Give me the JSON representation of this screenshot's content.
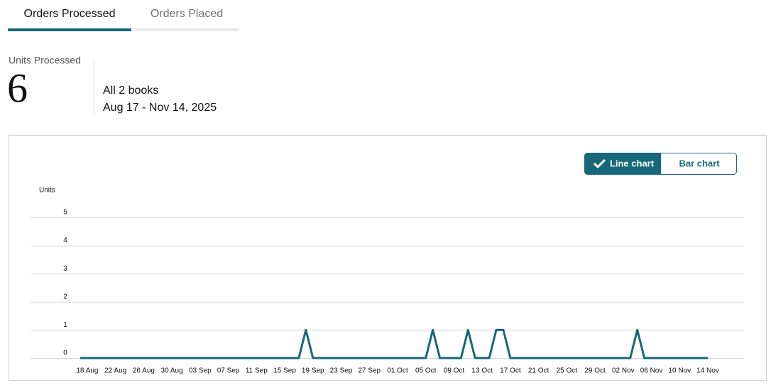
{
  "tabs": [
    "Orders Processed",
    "Orders Placed"
  ],
  "summary": {
    "label": "Units Processed",
    "value": 6,
    "scope": "All 2 books",
    "range": "Aug 17 - Nov 14, 2025"
  },
  "chart_data": {
    "type": "line",
    "y_label": "Units",
    "toggle": [
      "Line chart",
      "Bar chart"
    ],
    "color": "#17687a",
    "grid": true,
    "ylim": [
      0,
      5
    ],
    "yticks": [
      0,
      1,
      2,
      3,
      4,
      5
    ],
    "categories": [
      null,
      "18 Aug",
      null,
      null,
      null,
      "22 Aug",
      null,
      null,
      null,
      "26 Aug",
      null,
      null,
      null,
      "30 Aug",
      null,
      null,
      null,
      "03 Sep",
      null,
      null,
      null,
      "07 Sep",
      null,
      null,
      null,
      "11 Sep",
      null,
      null,
      null,
      "15 Sep",
      null,
      null,
      null,
      "19 Sep",
      null,
      null,
      null,
      "23 Sep",
      null,
      null,
      null,
      "27 Sep",
      null,
      null,
      null,
      "01 Oct",
      null,
      null,
      null,
      "05 Oct",
      null,
      null,
      null,
      "09 Oct",
      null,
      null,
      null,
      "13 Oct",
      null,
      null,
      null,
      "17 Oct",
      null,
      null,
      null,
      "21 Oct",
      null,
      null,
      null,
      "25 Oct",
      null,
      null,
      null,
      "29 Oct",
      null,
      null,
      null,
      "02 Nov",
      null,
      null,
      null,
      "06 Nov",
      null,
      null,
      null,
      "10 Nov",
      null,
      null,
      null,
      "14 Nov"
    ],
    "values": [
      0,
      0,
      0,
      0,
      0,
      0,
      0,
      0,
      0,
      0,
      0,
      0,
      0,
      0,
      0,
      0,
      0,
      0,
      0,
      0,
      0,
      0,
      0,
      0,
      0,
      0,
      0,
      0,
      0,
      0,
      0,
      0,
      1,
      0,
      0,
      0,
      0,
      0,
      0,
      0,
      0,
      0,
      0,
      0,
      0,
      0,
      0,
      0,
      0,
      0,
      1,
      0,
      0,
      0,
      0,
      1,
      0,
      0,
      0,
      1,
      1,
      0,
      0,
      0,
      0,
      0,
      0,
      0,
      0,
      0,
      0,
      0,
      0,
      0,
      0,
      0,
      0,
      0,
      0,
      1,
      0,
      0,
      0,
      0,
      0,
      0,
      0,
      0,
      0,
      0
    ]
  }
}
